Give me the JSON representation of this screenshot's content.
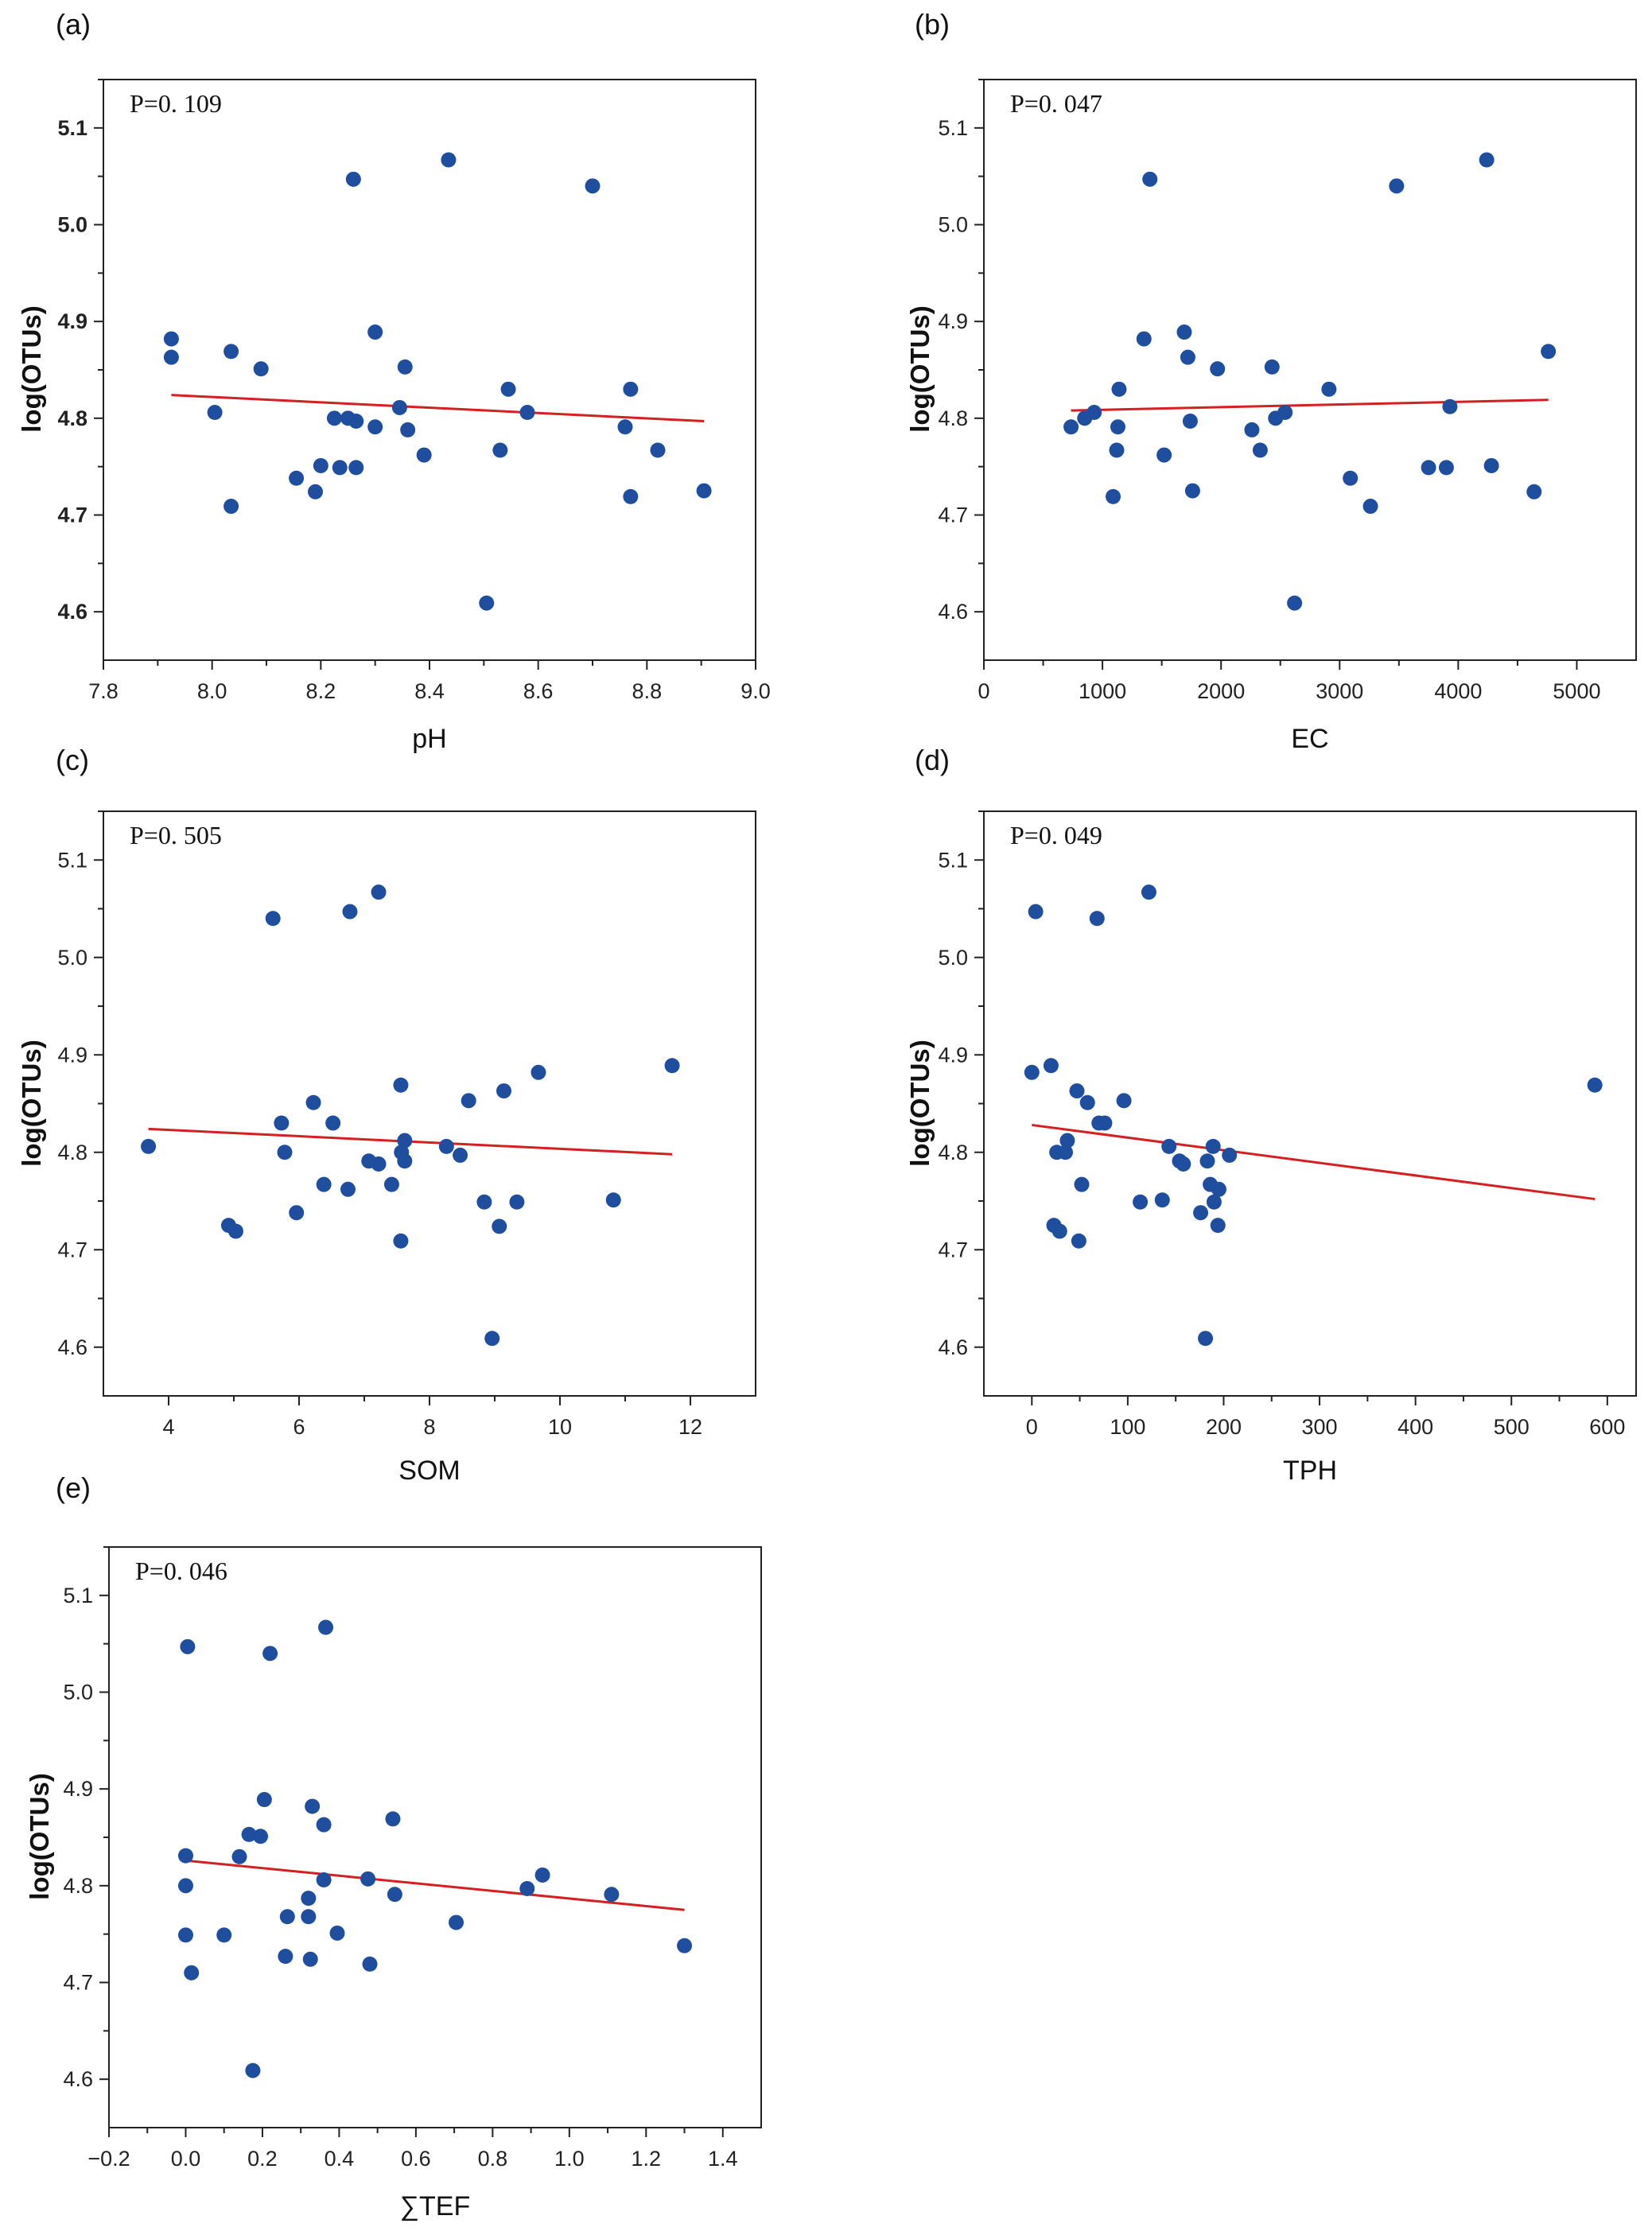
{
  "chart_data": [
    {
      "id": "a",
      "type": "scatter",
      "panel_label": "(a)",
      "pvalue_text": "P=0. 109",
      "xlabel": "pH",
      "ylabel": "log(OTUs)",
      "xlim": [
        7.8,
        9.0
      ],
      "ylim": [
        4.55,
        5.15
      ],
      "xticks": [
        7.8,
        8.0,
        8.2,
        8.4,
        8.6,
        8.8,
        9.0
      ],
      "xtick_labels": [
        "7.8",
        "8.0",
        "8.2",
        "8.4",
        "8.6",
        "8.8",
        "9.0"
      ],
      "yticks": [
        4.6,
        4.7,
        4.8,
        4.9,
        5.0,
        5.1
      ],
      "ytick_labels": [
        "4.6",
        "4.7",
        "4.8",
        "4.9",
        "5.0",
        "5.1"
      ],
      "ytick_bold": true,
      "points": [
        [
          7.925,
          4.882
        ],
        [
          7.925,
          4.863
        ],
        [
          8.005,
          4.806
        ],
        [
          8.035,
          4.869
        ],
        [
          8.035,
          4.709
        ],
        [
          8.09,
          4.851
        ],
        [
          8.155,
          4.738
        ],
        [
          8.19,
          4.724
        ],
        [
          8.2,
          4.751
        ],
        [
          8.225,
          4.8
        ],
        [
          8.235,
          4.749
        ],
        [
          8.25,
          4.8
        ],
        [
          8.26,
          5.047
        ],
        [
          8.265,
          4.797
        ],
        [
          8.265,
          4.749
        ],
        [
          8.3,
          4.791
        ],
        [
          8.3,
          4.889
        ],
        [
          8.345,
          4.811
        ],
        [
          8.355,
          4.853
        ],
        [
          8.36,
          4.788
        ],
        [
          8.39,
          4.762
        ],
        [
          8.435,
          5.067
        ],
        [
          8.505,
          4.609
        ],
        [
          8.53,
          4.767
        ],
        [
          8.545,
          4.83
        ],
        [
          8.58,
          4.806
        ],
        [
          8.7,
          5.04
        ],
        [
          8.76,
          4.791
        ],
        [
          8.77,
          4.83
        ],
        [
          8.77,
          4.719
        ],
        [
          8.82,
          4.767
        ],
        [
          8.905,
          4.725
        ]
      ],
      "fit_line": [
        [
          7.925,
          4.824
        ],
        [
          8.905,
          4.797
        ]
      ]
    },
    {
      "id": "b",
      "type": "scatter",
      "panel_label": "(b)",
      "pvalue_text": "P=0. 047",
      "xlabel": "EC",
      "ylabel": "log(OTUs)",
      "xlim": [
        0,
        5500
      ],
      "ylim": [
        4.55,
        5.15
      ],
      "xticks": [
        0,
        1000,
        2000,
        3000,
        4000,
        5000
      ],
      "xtick_labels": [
        "0",
        "1000",
        "2000",
        "3000",
        "4000",
        "5000"
      ],
      "yticks": [
        4.6,
        4.7,
        4.8,
        4.9,
        5.0,
        5.1
      ],
      "ytick_labels": [
        "4.6",
        "4.7",
        "4.8",
        "4.9",
        "5.0",
        "5.1"
      ],
      "ytick_bold": false,
      "points": [
        [
          735,
          4.791
        ],
        [
          850,
          4.8
        ],
        [
          930,
          4.806
        ],
        [
          1090,
          4.719
        ],
        [
          1120,
          4.767
        ],
        [
          1130,
          4.791
        ],
        [
          1140,
          4.83
        ],
        [
          1350,
          4.882
        ],
        [
          1400,
          5.047
        ],
        [
          1520,
          4.762
        ],
        [
          1690,
          4.889
        ],
        [
          1720,
          4.863
        ],
        [
          1740,
          4.797
        ],
        [
          1760,
          4.725
        ],
        [
          1970,
          4.851
        ],
        [
          2260,
          4.788
        ],
        [
          2330,
          4.767
        ],
        [
          2430,
          4.853
        ],
        [
          2460,
          4.8
        ],
        [
          2540,
          4.806
        ],
        [
          2620,
          4.609
        ],
        [
          2910,
          4.83
        ],
        [
          3090,
          4.738
        ],
        [
          3260,
          4.709
        ],
        [
          3480,
          5.04
        ],
        [
          3750,
          4.749
        ],
        [
          3900,
          4.749
        ],
        [
          3930,
          4.812
        ],
        [
          4240,
          5.067
        ],
        [
          4280,
          4.751
        ],
        [
          4640,
          4.724
        ],
        [
          4760,
          4.869
        ]
      ],
      "fit_line": [
        [
          735,
          4.808
        ],
        [
          4760,
          4.819
        ]
      ]
    },
    {
      "id": "c",
      "type": "scatter",
      "panel_label": "(c)",
      "pvalue_text": "P=0. 505",
      "xlabel": "SOM",
      "ylabel": "log(OTUs)",
      "xlim": [
        3,
        13
      ],
      "ylim": [
        4.55,
        5.15
      ],
      "xticks": [
        4,
        6,
        8,
        10,
        12
      ],
      "xtick_labels": [
        "4",
        "6",
        "8",
        "10",
        "12"
      ],
      "yticks": [
        4.6,
        4.7,
        4.8,
        4.9,
        5.0,
        5.1
      ],
      "ytick_labels": [
        "4.6",
        "4.7",
        "4.8",
        "4.9",
        "5.0",
        "5.1"
      ],
      "ytick_bold": false,
      "points": [
        [
          3.69,
          4.806
        ],
        [
          4.92,
          4.725
        ],
        [
          5.03,
          4.719
        ],
        [
          5.6,
          5.04
        ],
        [
          5.73,
          4.83
        ],
        [
          5.78,
          4.8
        ],
        [
          5.96,
          4.738
        ],
        [
          6.22,
          4.851
        ],
        [
          6.38,
          4.767
        ],
        [
          6.52,
          4.83
        ],
        [
          6.75,
          4.762
        ],
        [
          6.78,
          5.047
        ],
        [
          7.07,
          4.791
        ],
        [
          7.22,
          5.067
        ],
        [
          7.22,
          4.788
        ],
        [
          7.42,
          4.767
        ],
        [
          7.56,
          4.709
        ],
        [
          7.56,
          4.869
        ],
        [
          7.57,
          4.8
        ],
        [
          7.62,
          4.812
        ],
        [
          7.62,
          4.791
        ],
        [
          8.26,
          4.806
        ],
        [
          8.47,
          4.797
        ],
        [
          8.6,
          4.853
        ],
        [
          8.84,
          4.749
        ],
        [
          8.96,
          4.609
        ],
        [
          9.07,
          4.724
        ],
        [
          9.14,
          4.863
        ],
        [
          9.34,
          4.749
        ],
        [
          9.67,
          4.882
        ],
        [
          10.82,
          4.751
        ],
        [
          11.72,
          4.889
        ]
      ],
      "fit_line": [
        [
          3.69,
          4.824
        ],
        [
          11.72,
          4.798
        ]
      ]
    },
    {
      "id": "d",
      "type": "scatter",
      "panel_label": "(d)",
      "pvalue_text": "P=0. 049",
      "xlabel": "TPH",
      "ylabel": "log(OTUs)",
      "xlim": [
        -50,
        630
      ],
      "ylim": [
        4.55,
        5.15
      ],
      "xticks": [
        0,
        100,
        200,
        300,
        400,
        500,
        600
      ],
      "xtick_labels": [
        "0",
        "100",
        "200",
        "300",
        "400",
        "500",
        "600"
      ],
      "yticks": [
        4.6,
        4.7,
        4.8,
        4.9,
        5.0,
        5.1
      ],
      "ytick_labels": [
        "4.6",
        "4.7",
        "4.8",
        "4.9",
        "5.0",
        "5.1"
      ],
      "ytick_bold": false,
      "points": [
        [
          0,
          4.882
        ],
        [
          4,
          5.047
        ],
        [
          20,
          4.889
        ],
        [
          23,
          4.725
        ],
        [
          26,
          4.8
        ],
        [
          29,
          4.719
        ],
        [
          35,
          4.8
        ],
        [
          37,
          4.812
        ],
        [
          47,
          4.863
        ],
        [
          49,
          4.709
        ],
        [
          52,
          4.767
        ],
        [
          58,
          4.851
        ],
        [
          68,
          5.04
        ],
        [
          70,
          4.83
        ],
        [
          76,
          4.83
        ],
        [
          96,
          4.853
        ],
        [
          113,
          4.749
        ],
        [
          122,
          5.067
        ],
        [
          136,
          4.751
        ],
        [
          143,
          4.806
        ],
        [
          154,
          4.791
        ],
        [
          158,
          4.788
        ],
        [
          176,
          4.738
        ],
        [
          181,
          4.609
        ],
        [
          183,
          4.791
        ],
        [
          186,
          4.767
        ],
        [
          189,
          4.806
        ],
        [
          190,
          4.749
        ],
        [
          194,
          4.725
        ],
        [
          195,
          4.762
        ],
        [
          206,
          4.797
        ],
        [
          587,
          4.869
        ]
      ],
      "fit_line": [
        [
          0,
          4.828
        ],
        [
          587,
          4.752
        ]
      ]
    },
    {
      "id": "e",
      "type": "scatter",
      "panel_label": "(e)",
      "pvalue_text": "P=0. 046",
      "xlabel": "∑TEF",
      "ylabel": "log(OTUs)",
      "xlim": [
        -0.2,
        1.5
      ],
      "ylim": [
        4.55,
        5.15
      ],
      "xticks": [
        -0.2,
        0.0,
        0.2,
        0.4,
        0.6,
        0.8,
        1.0,
        1.2,
        1.4
      ],
      "xtick_labels": [
        "−0.2",
        "0.0",
        "0.2",
        "0.4",
        "0.6",
        "0.8",
        "1.0",
        "1.2",
        "1.4"
      ],
      "yticks": [
        4.6,
        4.7,
        4.8,
        4.9,
        5.0,
        5.1
      ],
      "ytick_labels": [
        "4.6",
        "4.7",
        "4.8",
        "4.9",
        "5.0",
        "5.1"
      ],
      "ytick_bold": false,
      "points": [
        [
          0.0,
          4.831
        ],
        [
          0.0,
          4.8
        ],
        [
          0.0,
          4.749
        ],
        [
          0.005,
          5.047
        ],
        [
          0.015,
          4.71
        ],
        [
          0.1,
          4.749
        ],
        [
          0.14,
          4.83
        ],
        [
          0.165,
          4.853
        ],
        [
          0.175,
          4.609
        ],
        [
          0.195,
          4.851
        ],
        [
          0.205,
          4.889
        ],
        [
          0.22,
          5.04
        ],
        [
          0.26,
          4.727
        ],
        [
          0.265,
          4.768
        ],
        [
          0.32,
          4.787
        ],
        [
          0.32,
          4.768
        ],
        [
          0.325,
          4.724
        ],
        [
          0.33,
          4.882
        ],
        [
          0.36,
          4.863
        ],
        [
          0.36,
          4.806
        ],
        [
          0.365,
          5.067
        ],
        [
          0.395,
          4.751
        ],
        [
          0.475,
          4.807
        ],
        [
          0.48,
          4.719
        ],
        [
          0.54,
          4.869
        ],
        [
          0.545,
          4.791
        ],
        [
          0.705,
          4.762
        ],
        [
          0.89,
          4.797
        ],
        [
          0.93,
          4.811
        ],
        [
          1.11,
          4.791
        ],
        [
          1.3,
          4.738
        ]
      ],
      "fit_line": [
        [
          0.0,
          4.826
        ],
        [
          1.3,
          4.775
        ]
      ]
    }
  ]
}
